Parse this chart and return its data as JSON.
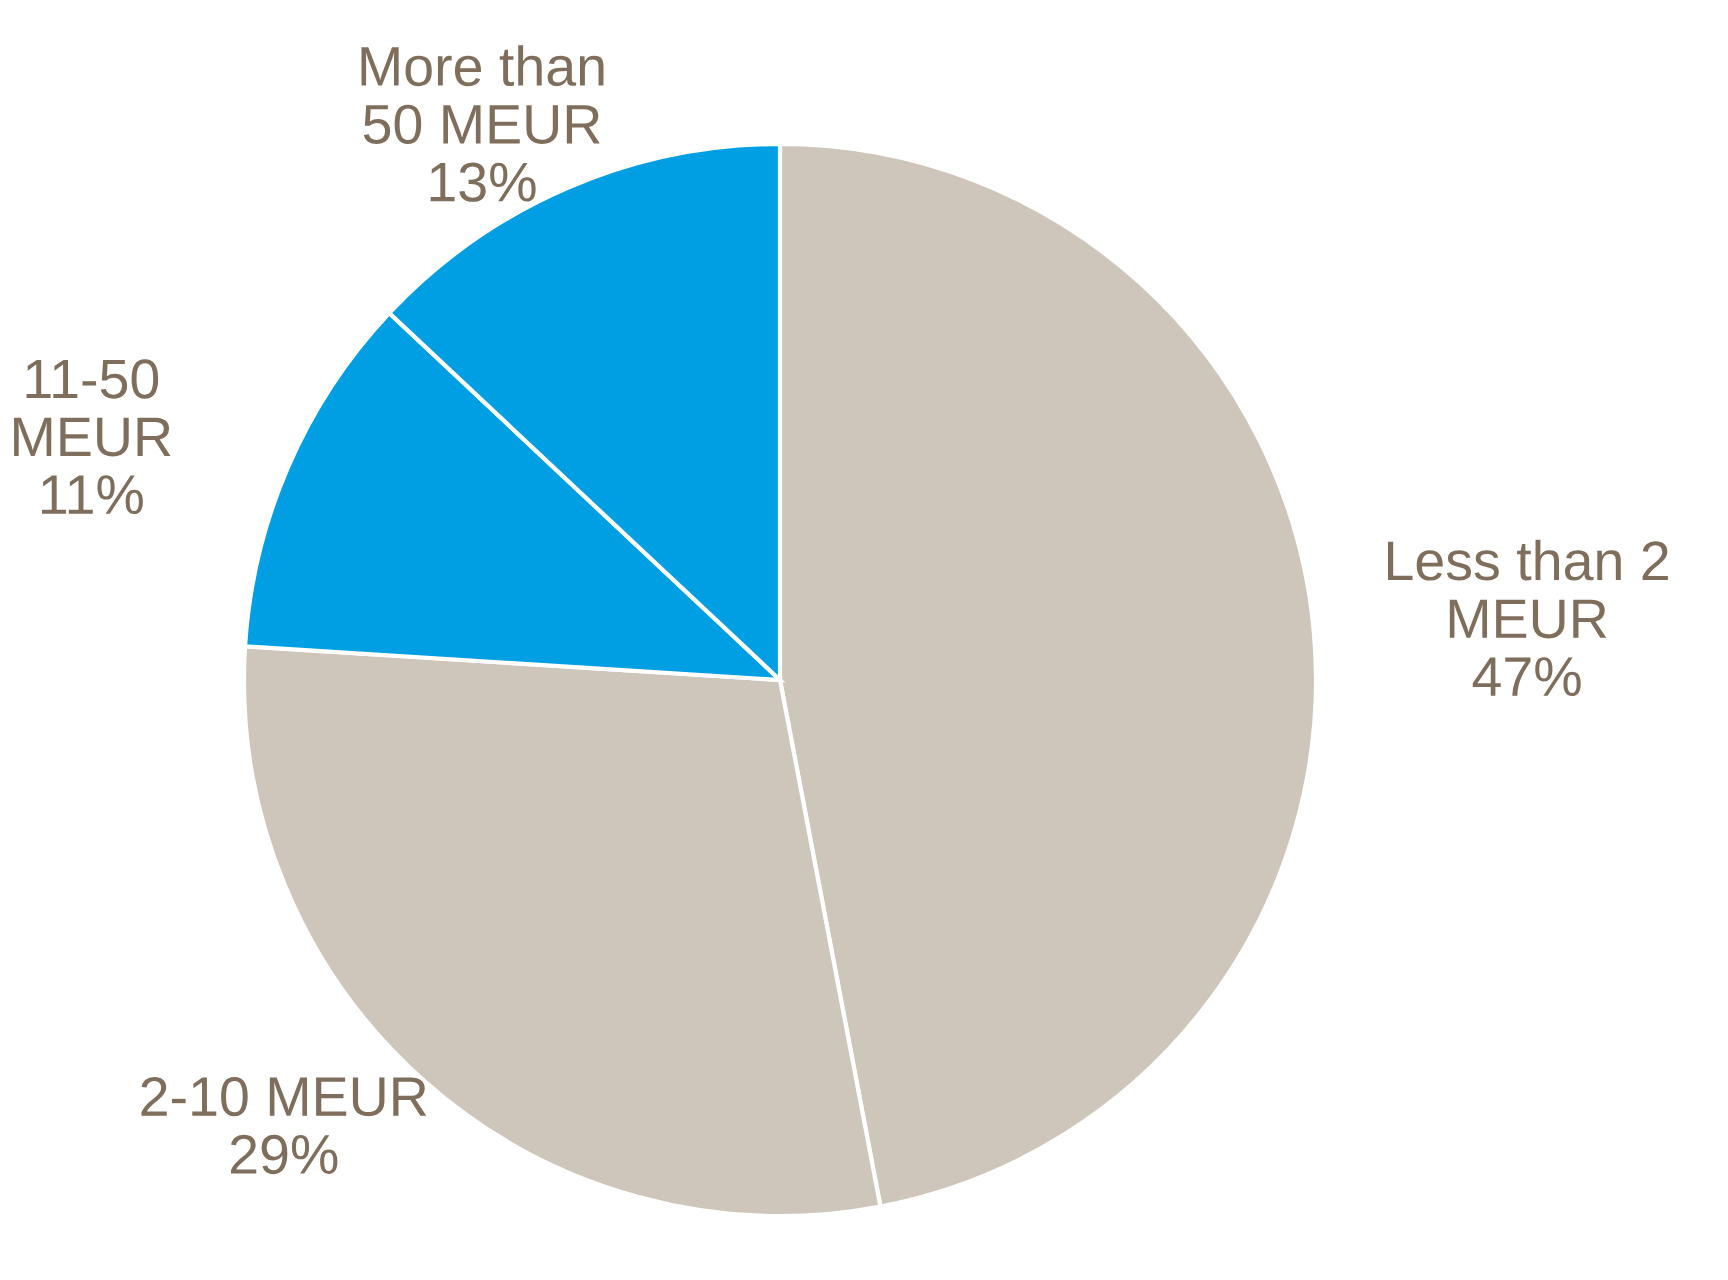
{
  "chart_data": {
    "type": "pie",
    "categories": [
      "Less than 2\nMEUR",
      "2-10 MEUR",
      "11-50\nMEUR",
      "More than\n50 MEUR"
    ],
    "values": [
      47,
      29,
      11,
      13
    ],
    "colors": [
      "#cfc6bb",
      "#cfc6bb",
      "#009fe3",
      "#009fe3"
    ],
    "value_labels": [
      "47%",
      "29%",
      "11%",
      "13%"
    ]
  }
}
